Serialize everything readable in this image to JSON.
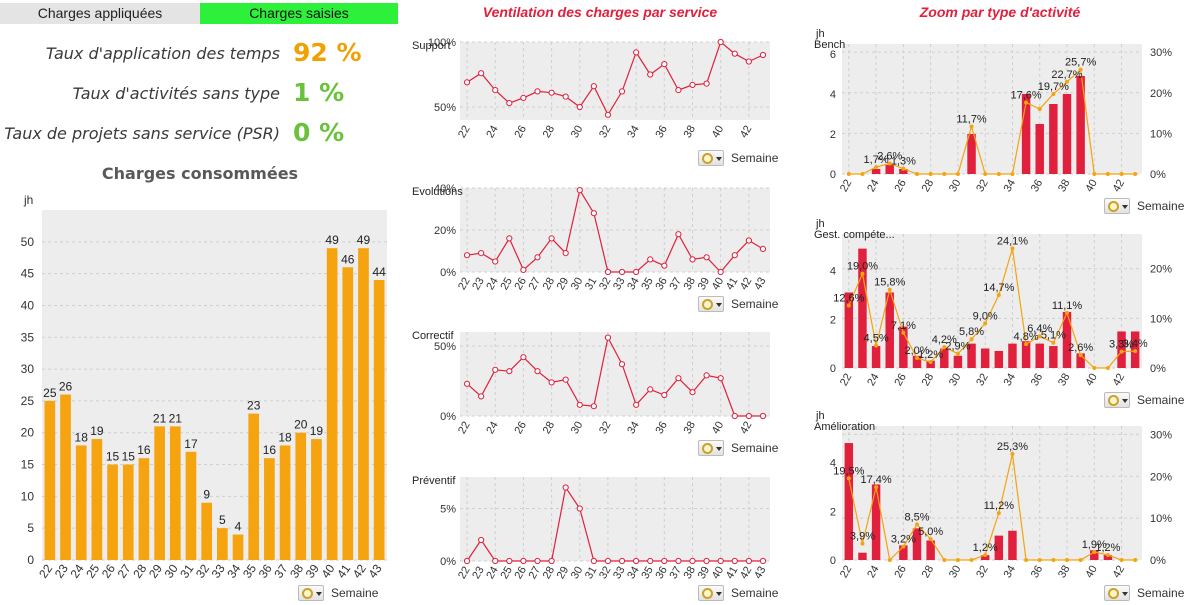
{
  "tabs": [
    {
      "label": "Charges appliquées"
    },
    {
      "label": "Charges saisies"
    }
  ],
  "kpis": [
    {
      "label": "Taux d'application des temps",
      "value": "92 %",
      "color": "#f0a000"
    },
    {
      "label": "Taux d'activités sans type",
      "value": "1 %",
      "color": "#6ac23a"
    },
    {
      "label": "Taux de projets sans service (PSR)",
      "value": "0 %",
      "color": "#6ac23a"
    }
  ],
  "titles": {
    "main": "Charges consommées",
    "service": "Ventilation des charges par service",
    "activity": "Zoom par type d'activité"
  },
  "controls": {
    "week_label": "Semaine"
  },
  "colors": {
    "bar_main": "#f5a30f",
    "line": "#e0203c",
    "bar_red": "#e0203c",
    "line_orange": "#f5a30f",
    "plot_bg": "#ededed"
  },
  "chart_data": [
    {
      "id": "consumed",
      "type": "bar",
      "title": "Charges consommées",
      "ylabel": "jh",
      "xlabel": "Semaine",
      "categories": [
        "22",
        "23",
        "24",
        "25",
        "26",
        "27",
        "28",
        "29",
        "30",
        "31",
        "32",
        "33",
        "34",
        "35",
        "36",
        "37",
        "38",
        "39",
        "40",
        "41",
        "42",
        "43"
      ],
      "values": [
        25,
        26,
        18,
        19,
        15,
        15,
        16,
        21,
        21,
        17,
        9,
        5,
        4,
        23,
        16,
        18,
        20,
        19,
        49,
        46,
        49,
        44
      ],
      "ylim": [
        0,
        55
      ],
      "yticks": [
        0,
        5,
        10,
        15,
        20,
        25,
        30,
        35,
        40,
        45,
        50
      ],
      "grid": true
    },
    {
      "id": "support",
      "type": "line",
      "title": "Support",
      "xlabel": "Semaine",
      "x": [
        22,
        23,
        24,
        25,
        26,
        27,
        28,
        29,
        30,
        31,
        32,
        33,
        34,
        35,
        36,
        37,
        38,
        39,
        40,
        41,
        42,
        43
      ],
      "xticks": [
        "22",
        "24",
        "26",
        "28",
        "30",
        "32",
        "34",
        "36",
        "38",
        "40",
        "42"
      ],
      "values": [
        69,
        76,
        63,
        53,
        57,
        62,
        61,
        58,
        50,
        66,
        44,
        62,
        92,
        75,
        83,
        63,
        67,
        68,
        100,
        91,
        85,
        90
      ],
      "ylim": [
        40,
        100
      ],
      "yticks": [
        {
          "v": 50,
          "l": "50%"
        },
        {
          "v": 100,
          "l": "100%"
        }
      ],
      "grid": true
    },
    {
      "id": "evolutions",
      "type": "line",
      "title": "Evolutions",
      "xlabel": "Semaine",
      "x": [
        22,
        23,
        24,
        25,
        26,
        27,
        28,
        29,
        30,
        31,
        32,
        33,
        34,
        35,
        36,
        37,
        38,
        39,
        40,
        41,
        42,
        43
      ],
      "xticks": [
        "22",
        "23",
        "24",
        "25",
        "26",
        "27",
        "28",
        "29",
        "30",
        "31",
        "32",
        "33",
        "34",
        "35",
        "36",
        "37",
        "38",
        "39",
        "40",
        "41",
        "42",
        "43"
      ],
      "values": [
        8,
        9,
        5,
        16,
        1,
        7,
        16,
        9,
        39,
        28,
        0,
        0,
        0,
        6,
        3,
        18,
        6,
        7,
        0,
        8,
        15,
        11
      ],
      "ylim": [
        0,
        40
      ],
      "yticks": [
        {
          "v": 0,
          "l": "0%"
        },
        {
          "v": 20,
          "l": "20%"
        },
        {
          "v": 40,
          "l": "40%"
        }
      ],
      "grid": true
    },
    {
      "id": "correctif",
      "type": "line",
      "title": "Correctif",
      "xlabel": "Semaine",
      "x": [
        22,
        23,
        24,
        25,
        26,
        27,
        28,
        29,
        30,
        31,
        32,
        33,
        34,
        35,
        36,
        37,
        38,
        39,
        40,
        41,
        42,
        43
      ],
      "xticks": [
        "22",
        "24",
        "26",
        "28",
        "30",
        "32",
        "34",
        "36",
        "38",
        "40",
        "42"
      ],
      "values": [
        23,
        14,
        33,
        32,
        42,
        32,
        24,
        26,
        8,
        7,
        56,
        37,
        8,
        19,
        15,
        27,
        17,
        29,
        27,
        0,
        0,
        0
      ],
      "ylim": [
        0,
        60
      ],
      "yticks": [
        {
          "v": 0,
          "l": "0%"
        },
        {
          "v": 50,
          "l": "50%"
        }
      ],
      "grid": true
    },
    {
      "id": "preventif",
      "type": "line",
      "title": "Préventif",
      "xlabel": "Semaine",
      "x": [
        22,
        23,
        24,
        25,
        26,
        27,
        28,
        29,
        30,
        31,
        32,
        33,
        34,
        35,
        36,
        37,
        38,
        39,
        40,
        41,
        42,
        43
      ],
      "xticks": [
        "22",
        "23",
        "24",
        "25",
        "26",
        "27",
        "28",
        "29",
        "30",
        "31",
        "32",
        "33",
        "34",
        "35",
        "36",
        "37",
        "38",
        "39",
        "40",
        "41",
        "42",
        "43"
      ],
      "values": [
        0,
        2,
        0,
        0,
        0,
        0,
        0,
        7,
        5,
        0,
        0,
        0,
        0,
        0,
        0,
        0,
        0,
        0,
        0,
        0,
        0,
        0
      ],
      "ylim": [
        0,
        8
      ],
      "yticks": [
        {
          "v": 0,
          "l": "0%"
        },
        {
          "v": 5,
          "l": "5%"
        }
      ],
      "grid": true
    },
    {
      "id": "bench",
      "type": "bar+line",
      "title": "Bench",
      "ylabel": "jh",
      "xlabel": "Semaine",
      "x": [
        22,
        23,
        24,
        25,
        26,
        27,
        28,
        29,
        30,
        31,
        32,
        33,
        34,
        35,
        36,
        37,
        38,
        39,
        40,
        41,
        42,
        43
      ],
      "xticks": [
        "22",
        "24",
        "26",
        "28",
        "30",
        "32",
        "34",
        "36",
        "38",
        "40",
        "42"
      ],
      "bars": [
        0,
        0,
        0.25,
        0.45,
        0.25,
        0,
        0,
        0,
        0,
        2.0,
        0,
        0,
        0,
        4.0,
        2.5,
        3.5,
        4.0,
        4.9,
        0,
        0,
        0,
        0
      ],
      "line": [
        0,
        0,
        1.7,
        2.6,
        1.3,
        0,
        0,
        0,
        0,
        11.7,
        0,
        0,
        0,
        17.6,
        16.0,
        19.7,
        22.7,
        25.7,
        0,
        0,
        0,
        0
      ],
      "labels": [
        "",
        "",
        "1,7%",
        "2,6%",
        "1,3%",
        "",
        "",
        "",
        "",
        "11,7%",
        "",
        "",
        "",
        "17,6%",
        "",
        "19,7%",
        "22,7%",
        "25,7%",
        "",
        "",
        "",
        ""
      ],
      "ylim": [
        0,
        6.5
      ],
      "yticks": [
        0,
        2,
        4,
        6
      ],
      "y2lim": [
        0,
        32
      ],
      "y2ticks": [
        {
          "v": 0,
          "l": "0%"
        },
        {
          "v": 10,
          "l": "10%"
        },
        {
          "v": 20,
          "l": "20%"
        },
        {
          "v": 30,
          "l": "30%"
        }
      ]
    },
    {
      "id": "gestion-competences",
      "type": "bar+line",
      "title": "Gest. compéte...",
      "ylabel": "jh",
      "xlabel": "Semaine",
      "x": [
        22,
        23,
        24,
        25,
        26,
        27,
        28,
        29,
        30,
        31,
        32,
        33,
        34,
        35,
        36,
        37,
        38,
        39,
        40,
        41,
        42,
        43
      ],
      "xticks": [
        "22",
        "24",
        "26",
        "28",
        "30",
        "32",
        "34",
        "36",
        "38",
        "40",
        "42"
      ],
      "bars": [
        3.1,
        4.9,
        0.9,
        3.1,
        1.7,
        0.5,
        0.3,
        0.8,
        0.5,
        1.0,
        0.8,
        0.7,
        1.0,
        1.1,
        1.0,
        0.9,
        2.3,
        0.6,
        0,
        0,
        1.5,
        1.5
      ],
      "line": [
        12.6,
        19.0,
        4.5,
        15.8,
        7.1,
        2.0,
        1.2,
        4.2,
        2.9,
        5.8,
        9.0,
        14.7,
        24.1,
        4.8,
        6.4,
        5.1,
        11.1,
        2.6,
        0,
        0,
        3.3,
        3.4
      ],
      "labels": [
        "12,6%",
        "19,0%",
        "4,5%",
        "15,8%",
        "7,1%",
        "2,0%",
        "1,2%",
        "4,2%",
        "2,9%",
        "5,8%",
        "9,0%",
        "14,7%",
        "24,1%",
        "4,8%",
        "6,4%",
        "5,1%",
        "11,1%",
        "2,6%",
        "",
        "",
        "3,3%",
        "3,4%"
      ],
      "ylim": [
        0,
        5.5
      ],
      "yticks": [
        0,
        2,
        4
      ],
      "y2lim": [
        0,
        27
      ],
      "y2ticks": [
        {
          "v": 0,
          "l": "0%"
        },
        {
          "v": 10,
          "l": "10%"
        },
        {
          "v": 20,
          "l": "20%"
        }
      ]
    },
    {
      "id": "amelioration",
      "type": "bar+line",
      "title": "Amélioration",
      "ylabel": "jh",
      "xlabel": "Semaine",
      "x": [
        22,
        23,
        24,
        25,
        26,
        27,
        28,
        29,
        30,
        31,
        32,
        33,
        34,
        35,
        36,
        37,
        38,
        39,
        40,
        41,
        42,
        43
      ],
      "xticks": [
        "22",
        "24",
        "26",
        "28",
        "30",
        "32",
        "34",
        "36",
        "38",
        "40",
        "42"
      ],
      "bars": [
        4.8,
        0.3,
        3.1,
        0,
        0.6,
        1.3,
        0.8,
        0,
        0,
        0,
        0.2,
        1.0,
        1.2,
        0,
        0,
        0,
        0,
        0,
        0.4,
        0.2,
        0,
        0
      ],
      "line": [
        19.5,
        3.9,
        17.4,
        0,
        3.2,
        8.5,
        5.0,
        0,
        0,
        0,
        1.2,
        11.2,
        25.3,
        0,
        0,
        0,
        0,
        0,
        1.9,
        1.2,
        0,
        0
      ],
      "labels": [
        "19,5%",
        "3,9%",
        "17,4%",
        "",
        "3,2%",
        "8,5%",
        "5,0%",
        "",
        "",
        "",
        "1,2%",
        "11,2%",
        "25,3%",
        "",
        "",
        "",
        "",
        "",
        "1,9%",
        "1,2%",
        "",
        ""
      ],
      "ylim": [
        0,
        5.5
      ],
      "yticks": [
        0,
        2,
        4
      ],
      "y2lim": [
        0,
        32
      ],
      "y2ticks": [
        {
          "v": 0,
          "l": "0%"
        },
        {
          "v": 10,
          "l": "10%"
        },
        {
          "v": 20,
          "l": "20%"
        },
        {
          "v": 30,
          "l": "30%"
        }
      ]
    }
  ]
}
